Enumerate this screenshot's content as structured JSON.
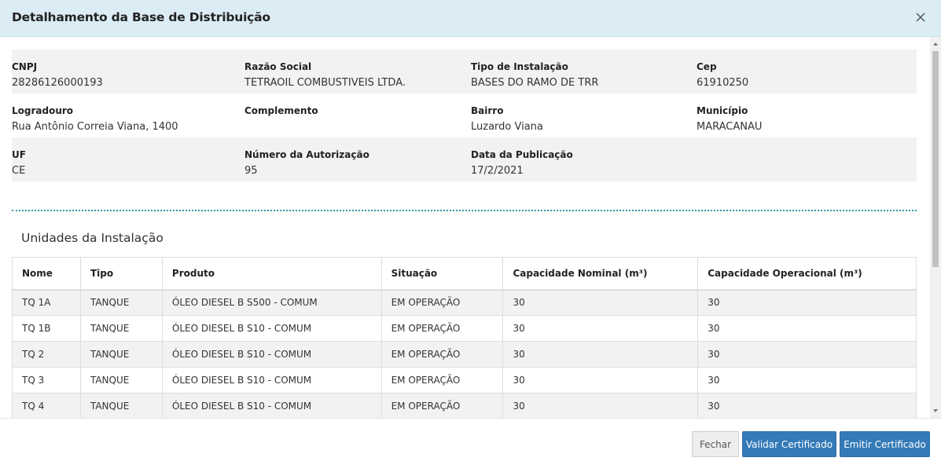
{
  "modal": {
    "title": "Detalhamento da Base de Distribuição"
  },
  "info": {
    "rows": [
      [
        {
          "label": "CNPJ",
          "value": "28286126000193"
        },
        {
          "label": "Razão Social",
          "value": "TETRAOIL COMBUSTIVEIS LTDA."
        },
        {
          "label": "Tipo de Instalação",
          "value": "BASES DO RAMO DE TRR"
        },
        {
          "label": "Cep",
          "value": "61910250"
        }
      ],
      [
        {
          "label": "Logradouro",
          "value": "Rua Antônio Correia Viana, 1400"
        },
        {
          "label": "Complemento",
          "value": ""
        },
        {
          "label": "Bairro",
          "value": "Luzardo Viana"
        },
        {
          "label": "Município",
          "value": "MARACANAU"
        }
      ],
      [
        {
          "label": "UF",
          "value": "CE"
        },
        {
          "label": "Número da Autorização",
          "value": "95"
        },
        {
          "label": "Data da Publicação",
          "value": "17/2/2021"
        },
        {
          "label": "",
          "value": ""
        }
      ]
    ]
  },
  "units": {
    "title": "Unidades da Instalação",
    "headers": [
      "Nome",
      "Tipo",
      "Produto",
      "Situação",
      "Capacidade Nominal (m³)",
      "Capacidade Operacional (m³)"
    ],
    "rows": [
      [
        "TQ 1A",
        "TANQUE",
        "ÓLEO DIESEL B S500 - COMUM",
        "EM OPERAÇÃO",
        "30",
        "30"
      ],
      [
        "TQ 1B",
        "TANQUE",
        "ÓLEO DIESEL B S10 - COMUM",
        "EM OPERAÇÃO",
        "30",
        "30"
      ],
      [
        "TQ 2",
        "TANQUE",
        "ÓLEO DIESEL B S10 - COMUM",
        "EM OPERAÇÃO",
        "30",
        "30"
      ],
      [
        "TQ 3",
        "TANQUE",
        "ÓLEO DIESEL B S10 - COMUM",
        "EM OPERAÇÃO",
        "30",
        "30"
      ],
      [
        "TQ 4",
        "TANQUE",
        "ÓLEO DIESEL B S10 - COMUM",
        "EM OPERAÇÃO",
        "30",
        "30"
      ]
    ]
  },
  "footer": {
    "close_label": "Fechar",
    "validate_label": "Validar Certificado",
    "issue_label": "Emitir Certificado"
  },
  "colors": {
    "header_bg": "#dcecf5",
    "primary": "#337ab7",
    "divider": "#2e9ca6",
    "row_shade": "#f2f2f2"
  },
  "icons": {
    "close": "close-icon",
    "scroll_up": "chevron-up-icon",
    "scroll_down": "chevron-down-icon"
  }
}
